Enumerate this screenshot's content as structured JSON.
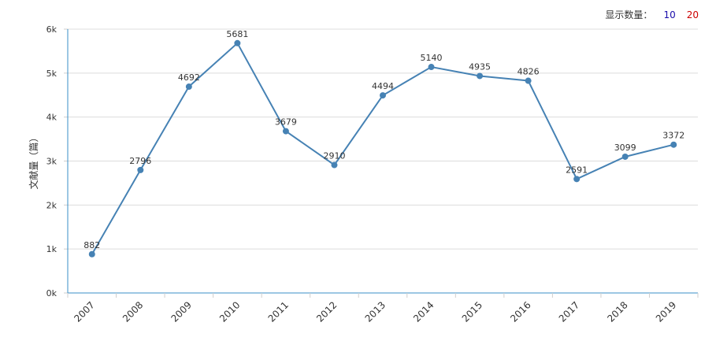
{
  "controls": {
    "label": "显示数量：",
    "options": [
      {
        "text": "10",
        "color": "#1a0dab"
      },
      {
        "text": "20",
        "color": "#cc0000"
      }
    ]
  },
  "chart_data": {
    "type": "line",
    "ylabel": "文献量（篇）",
    "x": [
      "2007",
      "2008",
      "2009",
      "2010",
      "2011",
      "2012",
      "2013",
      "2014",
      "2015",
      "2016",
      "2017",
      "2018",
      "2019"
    ],
    "series": [
      {
        "values": [
          882,
          2796,
          4692,
          5681,
          3679,
          2910,
          4494,
          5140,
          4935,
          4826,
          2591,
          3099,
          3372
        ]
      }
    ],
    "data_labels": [
      "882",
      "2796",
      "4692",
      "5681",
      "3679",
      "2910",
      "4494",
      "5140",
      "4935",
      "4826",
      "2591",
      "3099",
      "3372"
    ],
    "ylim": [
      0,
      6000
    ],
    "yticks": [
      0,
      1000,
      2000,
      3000,
      4000,
      5000,
      6000
    ],
    "ytick_labels": [
      "0k",
      "1k",
      "2k",
      "3k",
      "4k",
      "5k",
      "6k"
    ],
    "grid": true,
    "line_color": "#4682b4",
    "axis_color": "#3a8fc7"
  }
}
